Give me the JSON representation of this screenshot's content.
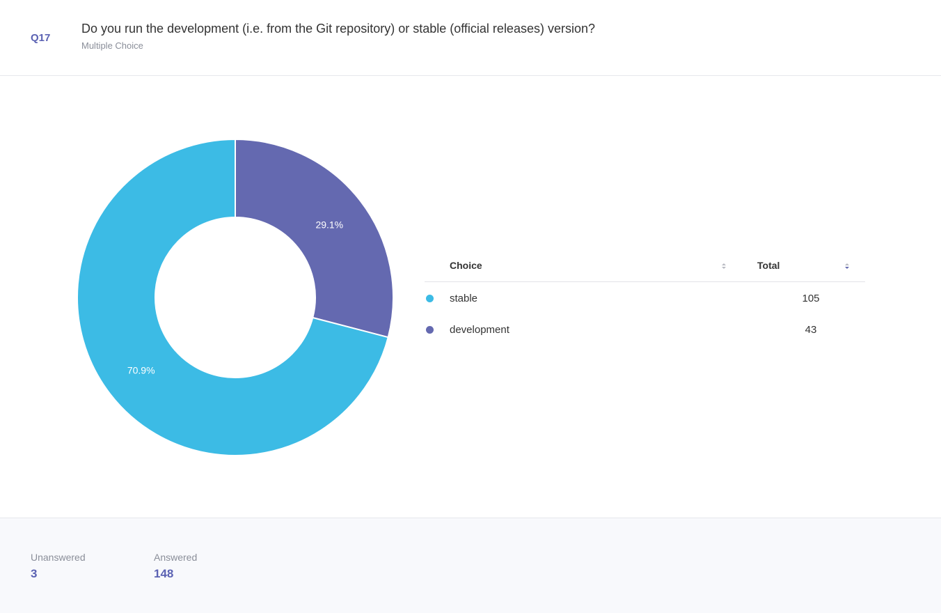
{
  "question": {
    "number": "Q17",
    "title": "Do you run the development (i.e. from the Git repository) or stable (official releases) version?",
    "type": "Multiple Choice"
  },
  "table": {
    "col_choice": "Choice",
    "col_total": "Total",
    "rows": [
      {
        "label": "stable",
        "total": "105",
        "color": "#3cbbe5"
      },
      {
        "label": "development",
        "total": "43",
        "color": "#6469b0"
      }
    ]
  },
  "stats": {
    "unanswered_label": "Unanswered",
    "unanswered_value": "3",
    "answered_label": "Answered",
    "answered_value": "148"
  },
  "chart_data": {
    "type": "pie",
    "donut": true,
    "categories": [
      "development",
      "stable"
    ],
    "values": [
      43,
      105
    ],
    "percent_labels": [
      "29.1%",
      "70.9%"
    ],
    "colors": [
      "#6469b0",
      "#3cbbe5"
    ],
    "start": "top",
    "direction": "clockwise"
  }
}
